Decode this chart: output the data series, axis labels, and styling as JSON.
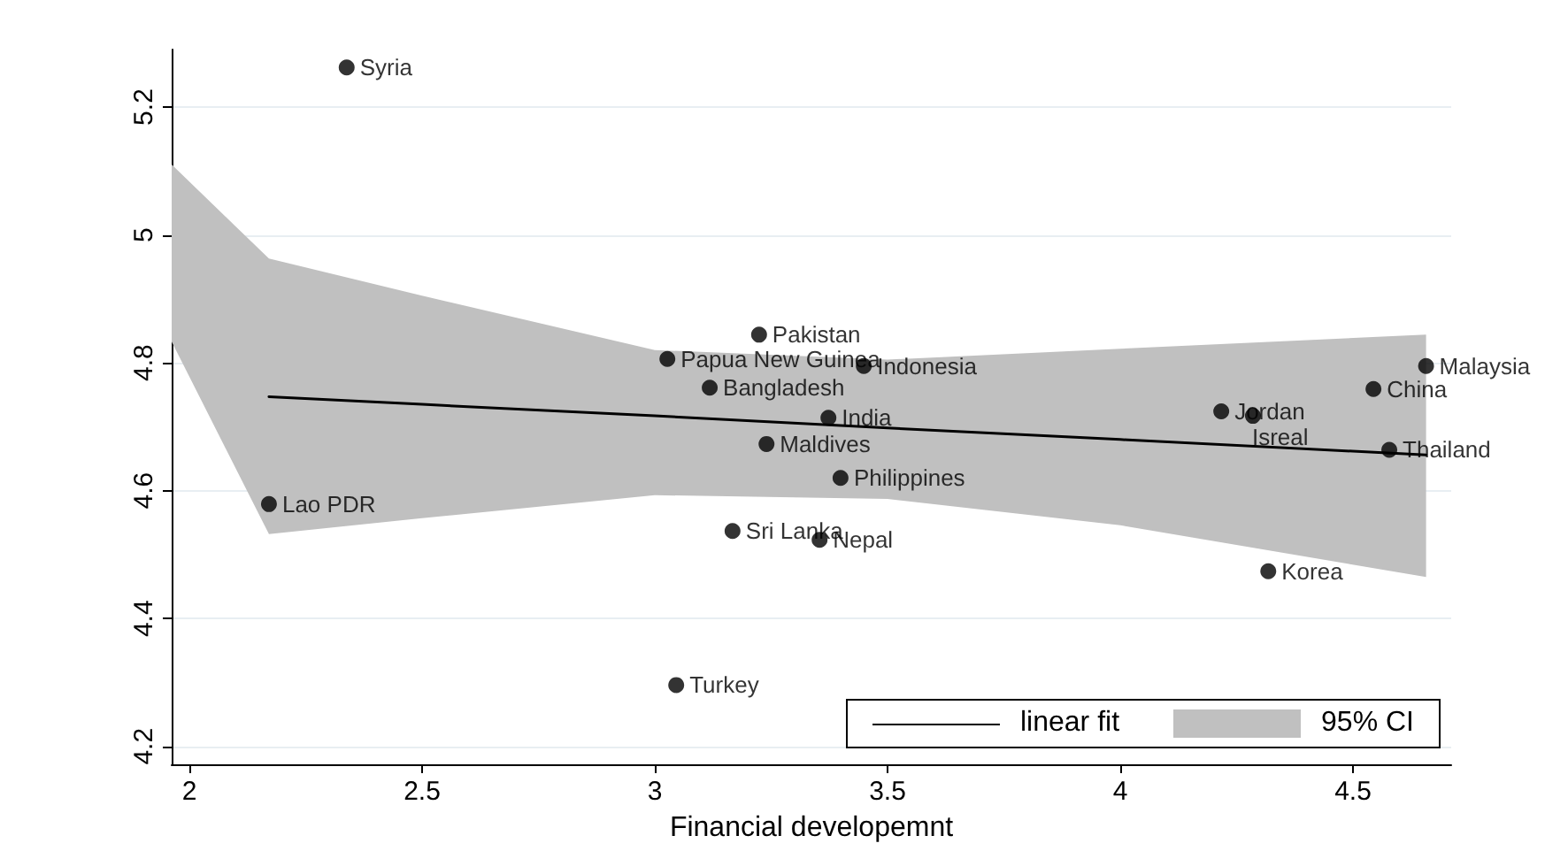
{
  "chart_data": {
    "type": "scatter",
    "xlabel": "Financial developemnt",
    "xlim": [
      1.962,
      4.711
    ],
    "xticks": [
      2,
      2.5,
      3,
      3.5,
      4,
      4.5
    ],
    "ylim": [
      4.172,
      5.29
    ],
    "yticks": [
      4.2,
      4.4,
      4.6,
      4.8,
      5,
      5.2
    ],
    "grid": "y",
    "legend": "bottom right",
    "annotations": [
      "95% CI"
    ],
    "series": [
      {
        "marker": "circle",
        "color": "#000000",
        "x": [
          2.338,
          2.171,
          3.027,
          3.224,
          3.118,
          3.449,
          3.373,
          3.24,
          3.399,
          3.167,
          3.354,
          3.046,
          4.217,
          4.285,
          4.318,
          4.657,
          4.544,
          4.578
        ],
        "values": [
          5.262,
          4.579,
          4.806,
          4.844,
          4.761,
          4.795,
          4.714,
          4.673,
          4.62,
          4.537,
          4.523,
          4.296,
          4.724,
          4.717,
          4.474,
          4.795,
          4.759,
          4.664
        ],
        "value_labels": [
          "Syria",
          "Lao PDR",
          "Papua New Guinea",
          "Pakistan",
          "Bangladesh",
          "Indonesia",
          "India",
          "Maldives",
          "Philippines",
          "Sri Lanka",
          "Nepal",
          "Turkey",
          "Jordan",
          "Isreal",
          "Korea",
          "Malaysia",
          "China",
          "Thailand"
        ]
      },
      {
        "type": "line",
        "name": "linear fit",
        "color": "#000000",
        "marker": "none",
        "line_style": "solid",
        "x": [
          1.962,
          2.171,
          2.5,
          3,
          3.5,
          4,
          4.657
        ],
        "values": [
          null,
          4.747,
          4.735,
          4.717,
          4.698,
          4.68,
          4.656
        ],
        "lower": [
          4.833,
          4.532,
          4.557,
          4.593,
          4.587,
          4.546,
          4.465
        ],
        "upper": [
          5.11,
          4.963,
          4.905,
          4.82,
          4.805,
          4.822,
          4.844
        ]
      }
    ]
  }
}
